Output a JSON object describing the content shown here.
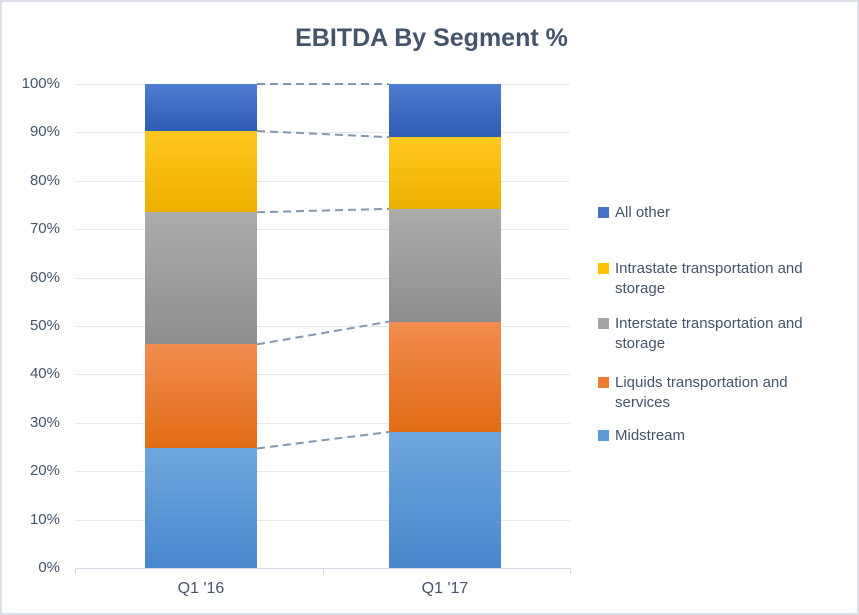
{
  "title": "EBITDA By Segment %",
  "chart_data": {
    "type": "bar",
    "subtype": "stacked-100-percent-column",
    "title": "EBITDA By Segment %",
    "categories": [
      "Q1 '16",
      "Q1 '17"
    ],
    "series": [
      {
        "name": "Midstream",
        "color": "#5B9BD5",
        "gradient": [
          "#6ea7df",
          "#4787cb"
        ],
        "values": [
          24.7,
          28.1
        ]
      },
      {
        "name": "Liquids transportation and services",
        "color": "#ED7D31",
        "gradient": [
          "#f28c50",
          "#e06c15"
        ],
        "values": [
          21.5,
          22.8
        ]
      },
      {
        "name": "Interstate transportation and storage",
        "color": "#A5A5A5",
        "gradient": [
          "#acacac",
          "#8e8e8e"
        ],
        "values": [
          27.3,
          23.3
        ]
      },
      {
        "name": "Intrastate transportation and storage",
        "color": "#FFC000",
        "gradient": [
          "#ffc81f",
          "#edb000"
        ],
        "values": [
          16.8,
          14.8
        ]
      },
      {
        "name": "All other",
        "color": "#4472C4",
        "gradient": [
          "#4e7cd0",
          "#2e5cb4"
        ],
        "values": [
          9.7,
          11.0
        ]
      }
    ],
    "y_ticks": [
      "0%",
      "10%",
      "20%",
      "30%",
      "40%",
      "50%",
      "60%",
      "70%",
      "80%",
      "90%",
      "100%"
    ],
    "ylim": [
      0,
      100
    ],
    "grid": true,
    "legend_position": "right",
    "legend_order": [
      "All other",
      "Intrastate transportation and storage",
      "Interstate transportation and storage",
      "Liquids transportation and services",
      "Midstream"
    ],
    "series_connector_lines": "dashed"
  },
  "colors": {
    "title_text": "#44546A",
    "axis_text": "#44546A",
    "legend_text": "#44546A",
    "gridline": "#e4e8f0",
    "axis_line": "#d6dce7",
    "connector_line": "#8496b0",
    "chart_border": "#dce1e9",
    "background": "#ffffff"
  }
}
